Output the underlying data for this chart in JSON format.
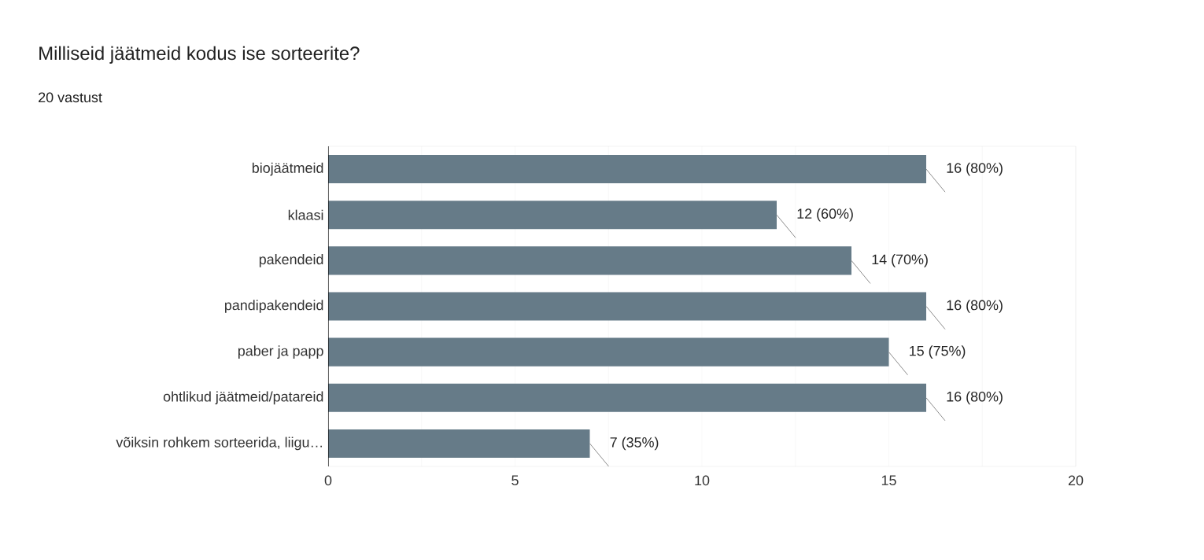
{
  "chart_data": {
    "type": "bar",
    "orientation": "horizontal",
    "title": "Milliseid jäätmeid kodus ise sorteerite?",
    "subtitle": "20 vastust",
    "categories": [
      "biojäätmeid",
      "klaasi",
      "pakendeid",
      "pandipakendeid",
      "paber ja papp",
      "ohtlikud jäätmeid/patareid",
      "võiksin rohkem sorteerida, liigu…"
    ],
    "values": [
      16,
      12,
      14,
      16,
      15,
      16,
      7
    ],
    "value_labels": [
      "16 (80%)",
      "12 (60%)",
      "14 (70%)",
      "16 (80%)",
      "15 (75%)",
      "16 (80%)",
      "7 (35%)"
    ],
    "color": "#667b88",
    "xlim": [
      0,
      20
    ],
    "xticks": [
      0,
      {
        "value": 2.5,
        "label": null
      },
      5,
      {
        "value": 7.5,
        "label": null
      },
      10,
      {
        "value": 12.5,
        "label": null
      },
      15,
      {
        "value": 17.5,
        "label": null
      },
      20
    ],
    "grid": "x"
  }
}
